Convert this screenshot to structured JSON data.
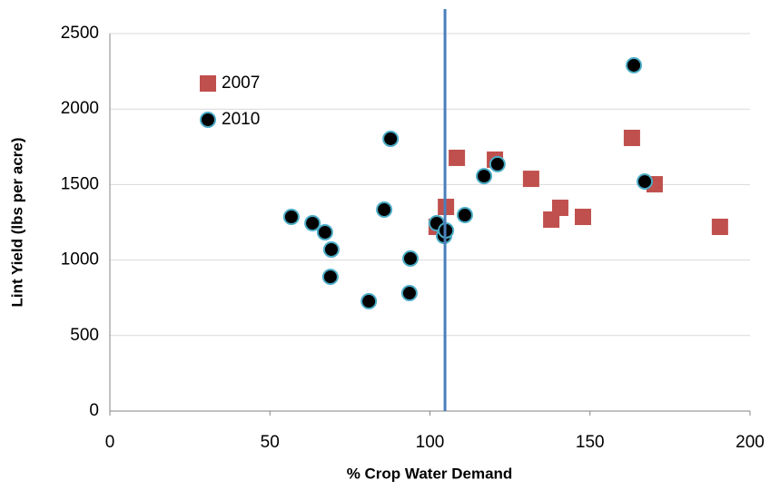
{
  "chart_data": {
    "type": "scatter",
    "xlabel": "% Crop Water Demand",
    "ylabel": "Lint Yield (lbs per acre)",
    "xlim": [
      0,
      200
    ],
    "xticks": [
      0,
      50,
      100,
      150,
      200
    ],
    "ylim": [
      0,
      2500
    ],
    "yticks": [
      0,
      500,
      1000,
      1500,
      2000,
      2500
    ],
    "grid": true,
    "legend": "upper left",
    "vertical_line": {
      "x": 104.7,
      "color": "#4a7ebb"
    },
    "series": [
      {
        "name": "2007",
        "color": "#c0504d",
        "marker": "square",
        "x": [
          105,
          102.1,
          108.4,
          120.3,
          131.6,
          137.9,
          140.7,
          147.8,
          163.1,
          170.2,
          190.6
        ],
        "values": [
          1352,
          1220,
          1677,
          1665,
          1538,
          1268,
          1346,
          1286,
          1809,
          1502,
          1220
        ]
      },
      {
        "name": "2010",
        "color": "#000000",
        "edgecolor": "#4bacc6",
        "marker": "circle",
        "x": [
          56.7,
          63.3,
          67.2,
          69.2,
          68.9,
          80.9,
          85.7,
          87.7,
          93.6,
          93.9,
          102.1,
          104.4,
          105,
          110.9,
          116.9,
          121.1,
          163.7,
          167.1
        ],
        "values": [
          1286,
          1244,
          1184,
          1070,
          889,
          727,
          1334,
          1803,
          781,
          1010,
          1244,
          1160,
          1196,
          1298,
          1556,
          1635,
          2290,
          1520
        ]
      }
    ]
  }
}
